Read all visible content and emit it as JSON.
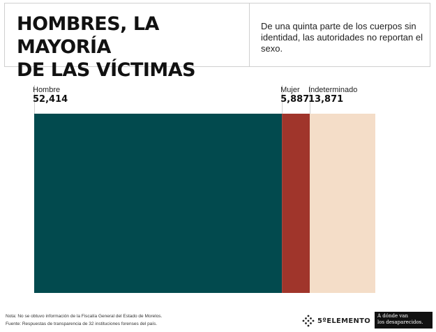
{
  "header": {
    "title_line1": "HOMBRES, LA MAYORÍA",
    "title_line2": "DE LAS VÍCTIMAS",
    "subtitle": "De una quinta parte de los cuerpos sin identidad, las autoridades no reportan el sexo."
  },
  "chart_data": {
    "type": "bar",
    "orientation": "stacked-horizontal",
    "title": "HOMBRES, LA MAYORÍA DE LAS VÍCTIMAS",
    "categories": [
      "Hombre",
      "Mujer",
      "Indeterminado"
    ],
    "values": [
      52414,
      5887,
      13871
    ],
    "value_labels": [
      "52,414",
      "5,887",
      "13,871"
    ],
    "colors": [
      "#024a4e",
      "#a0352b",
      "#f4ddc8"
    ],
    "legend": "none",
    "grid": false
  },
  "footer": {
    "note": "Nota: No se obtuvo información de la Fiscalía General del Estado de Morelos.",
    "source": "Fuente: Respuestas de transparencia de 32 instituciones forenses del país.",
    "logo_quinto": "5ºELEMENTO",
    "logo_adonde_line1": "A dónde van",
    "logo_adonde_line2": "los desaparecidos."
  }
}
